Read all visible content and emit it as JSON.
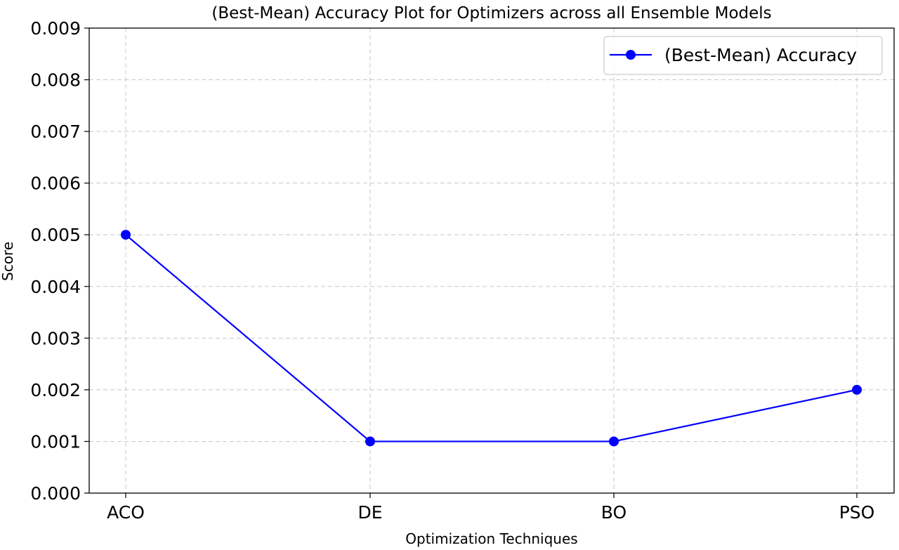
{
  "chart_data": {
    "type": "line",
    "title": "(Best-Mean) Accuracy Plot for Optimizers across all Ensemble Models",
    "xlabel": "Optimization Techniques",
    "ylabel": "Score",
    "categories": [
      "ACO",
      "DE",
      "BO",
      "PSO"
    ],
    "series": [
      {
        "name": "(Best-Mean) Accuracy",
        "values": [
          0.005,
          0.001,
          0.001,
          0.002
        ],
        "color": "#0000ff",
        "marker": "circle"
      }
    ],
    "ylim": [
      0,
      0.009
    ],
    "yticks": [
      0.0,
      0.001,
      0.002,
      0.003,
      0.004,
      0.005,
      0.006,
      0.007,
      0.008,
      0.009
    ],
    "ytick_labels": [
      "0.000",
      "0.001",
      "0.002",
      "0.003",
      "0.004",
      "0.005",
      "0.006",
      "0.007",
      "0.008",
      "0.009"
    ],
    "grid": true,
    "grid_style": "dashed",
    "legend": "top-right"
  }
}
